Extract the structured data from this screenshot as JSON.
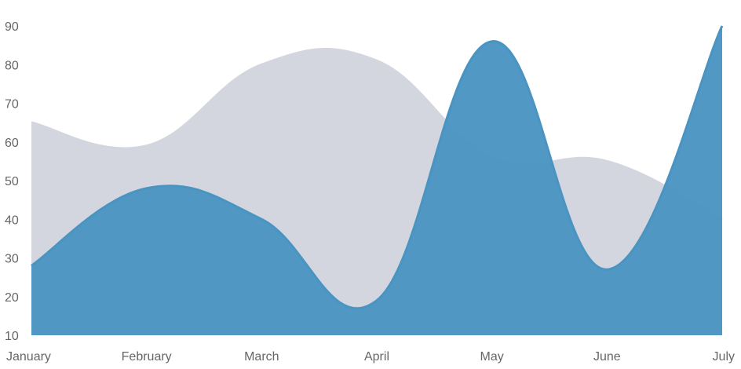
{
  "chart_data": {
    "type": "area",
    "categories": [
      "January",
      "February",
      "March",
      "April",
      "May",
      "June",
      "July"
    ],
    "series": [
      {
        "values": [
          65,
          59,
          80,
          81,
          56,
          55,
          40
        ],
        "fill": "#d3d6df",
        "stroke": "#d3d6df"
      },
      {
        "values": [
          28,
          48,
          40,
          19,
          86,
          27,
          90
        ],
        "fill": "#4a94c2",
        "stroke": "#4a94c2"
      }
    ],
    "ylim": [
      10,
      90
    ],
    "yticks": [
      10,
      20,
      30,
      40,
      50,
      60,
      70,
      80,
      90
    ],
    "title": "",
    "xlabel": "",
    "ylabel": "",
    "grid": false,
    "legend": "none"
  }
}
